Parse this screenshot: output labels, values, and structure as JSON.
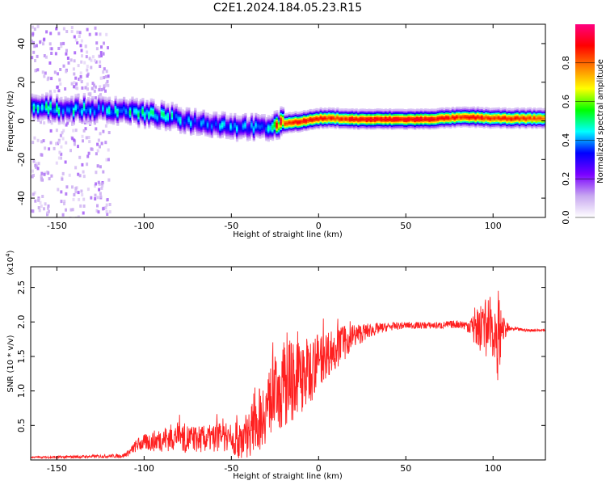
{
  "title": "C2E1.2024.184.05.23.R15",
  "chart_data": [
    {
      "type": "heatmap",
      "xlabel": "Height of straight line (km)",
      "ylabel": "Frequency (Hz)",
      "xlim": [
        -165,
        130
      ],
      "ylim": [
        -50,
        50
      ],
      "xticks": [
        -150,
        -100,
        -50,
        0,
        50,
        100
      ],
      "yticks": [
        -40,
        -20,
        0,
        20,
        40
      ],
      "colorbar": {
        "label": "Normalized spectral amplitude",
        "range": [
          0,
          1
        ],
        "ticks": [
          "0.0",
          "0.2",
          "0.4",
          "0.6",
          "0.8"
        ],
        "colors": [
          "#ffffff",
          "#c8a8f0",
          "#7a00ff",
          "#0000ff",
          "#00ffff",
          "#00ff00",
          "#ffff00",
          "#ff8000",
          "#ff0000",
          "#ff0080"
        ]
      },
      "ridge": {
        "x": [
          -165,
          -150,
          -130,
          -110,
          -100,
          -90,
          -80,
          -70,
          -60,
          -50,
          -40,
          -35,
          -30,
          -25,
          -20,
          -10,
          0,
          10,
          20,
          40,
          60,
          80,
          90,
          100,
          110,
          130
        ],
        "frequency": [
          7,
          6.5,
          6,
          5.5,
          4,
          2.5,
          1,
          -0.5,
          -1.5,
          -2.5,
          -3,
          -3.5,
          -3.5,
          -2,
          -1,
          0,
          1.5,
          1.5,
          1,
          1,
          1,
          2,
          2,
          1.5,
          1.5,
          1.5
        ],
        "amplitude": [
          0.45,
          0.45,
          0.4,
          0.45,
          0.45,
          0.45,
          0.4,
          0.4,
          0.4,
          0.4,
          0.4,
          0.35,
          0.45,
          0.8,
          0.85,
          0.9,
          0.85,
          0.85,
          0.9,
          0.9,
          0.9,
          0.85,
          0.9,
          0.85,
          0.85,
          0.8
        ]
      }
    },
    {
      "type": "line",
      "xlabel": "Height of straight line (km)",
      "ylabel": "SNR (10 * v/v)",
      "yscale_label": "(x10",
      "yscale_exp": "4",
      "yscale_close": ")",
      "color": "#ff2020",
      "xlim": [
        -165,
        130
      ],
      "ylim": [
        0,
        2.8
      ],
      "xticks": [
        -150,
        -100,
        -50,
        0,
        50,
        100
      ],
      "yticks": [
        "0.5",
        "1.0",
        "1.5",
        "2.0",
        "2.5"
      ],
      "series": [
        {
          "x": [
            -165,
            -150,
            -130,
            -112,
            -108,
            -104,
            -100,
            -95,
            -90,
            -85,
            -80,
            -75,
            -70,
            -65,
            -60,
            -55,
            -50,
            -45,
            -40,
            -35,
            -30,
            -25,
            -20,
            -15,
            -10,
            -5,
            0,
            5,
            10,
            15,
            20,
            30,
            40,
            50,
            60,
            70,
            80,
            85,
            90,
            95,
            100,
            103,
            105,
            110,
            120,
            130
          ],
          "y": [
            0.04,
            0.04,
            0.05,
            0.06,
            0.12,
            0.22,
            0.25,
            0.27,
            0.3,
            0.32,
            0.35,
            0.3,
            0.3,
            0.3,
            0.32,
            0.36,
            0.3,
            0.28,
            0.4,
            0.55,
            0.75,
            0.95,
            1.05,
            1.15,
            1.2,
            1.3,
            1.45,
            1.55,
            1.6,
            1.7,
            1.8,
            1.88,
            1.93,
            1.95,
            1.95,
            1.95,
            1.97,
            1.95,
            1.95,
            1.9,
            1.95,
            1.8,
            1.9,
            1.9,
            1.88,
            1.88
          ],
          "noise": [
            0.01,
            0.02,
            0.02,
            0.03,
            0.05,
            0.1,
            0.12,
            0.15,
            0.18,
            0.2,
            0.2,
            0.22,
            0.2,
            0.2,
            0.2,
            0.25,
            0.2,
            0.3,
            0.35,
            0.45,
            0.5,
            0.55,
            0.6,
            0.6,
            0.55,
            0.5,
            0.4,
            0.35,
            0.3,
            0.25,
            0.18,
            0.1,
            0.06,
            0.05,
            0.05,
            0.05,
            0.06,
            0.08,
            0.3,
            0.4,
            0.45,
            0.7,
            0.2,
            0.03,
            0.02,
            0.02
          ]
        }
      ]
    }
  ]
}
